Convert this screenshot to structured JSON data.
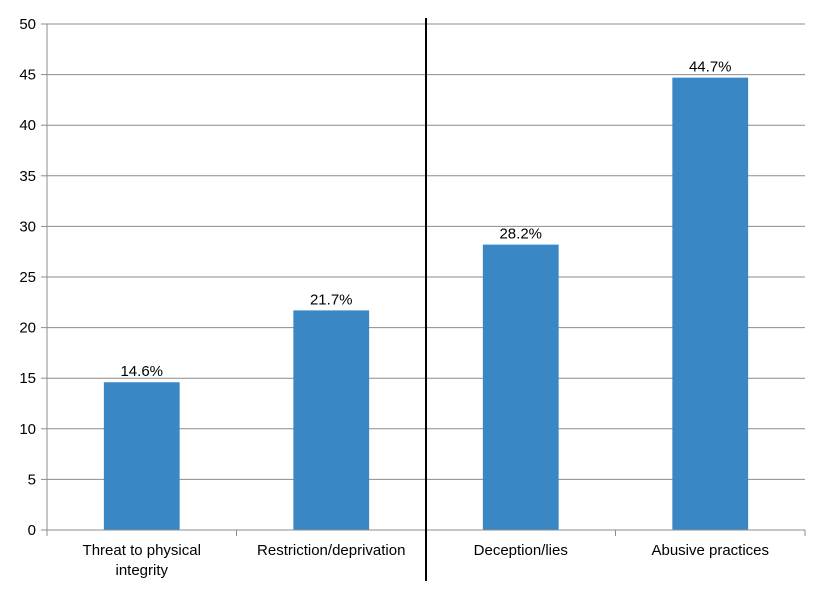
{
  "chart_data": {
    "type": "bar",
    "categories": [
      [
        "Threat to physical",
        "integrity"
      ],
      [
        "Restriction/deprivation"
      ],
      [
        "Deception/lies"
      ],
      [
        "Abusive practices"
      ]
    ],
    "values": [
      14.6,
      21.7,
      28.2,
      44.7
    ],
    "data_labels": [
      "14.6%",
      "21.7%",
      "28.2%",
      "44.7%"
    ],
    "title": "",
    "xlabel": "",
    "ylabel": "",
    "ylim": [
      0,
      50
    ],
    "yticks": [
      0,
      5,
      10,
      15,
      20,
      25,
      30,
      35,
      40,
      45,
      50
    ],
    "grid": true,
    "legend": "none",
    "bar_color": "#3a87c5",
    "divider_after_category": 1
  }
}
